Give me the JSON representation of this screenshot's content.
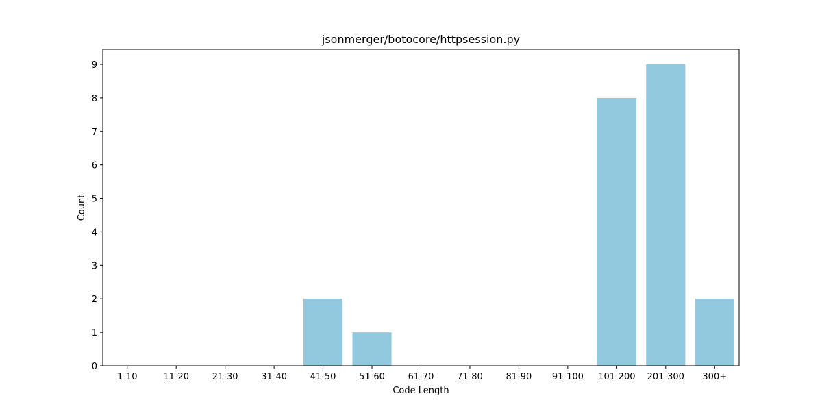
{
  "chart_data": {
    "type": "bar",
    "title": "jsonmerger/botocore/httpsession.py",
    "xlabel": "Code Length",
    "ylabel": "Count",
    "categories": [
      "1-10",
      "11-20",
      "21-30",
      "31-40",
      "41-50",
      "51-60",
      "61-70",
      "71-80",
      "81-90",
      "91-100",
      "101-200",
      "201-300",
      "300+"
    ],
    "values": [
      0,
      0,
      0,
      0,
      2,
      1,
      0,
      0,
      0,
      0,
      8,
      9,
      2
    ],
    "ylim": [
      0,
      9.45
    ],
    "yticks": [
      0,
      1,
      2,
      3,
      4,
      5,
      6,
      7,
      8,
      9
    ],
    "bar_color": "#92c9df",
    "grid": false,
    "legend": "none"
  }
}
